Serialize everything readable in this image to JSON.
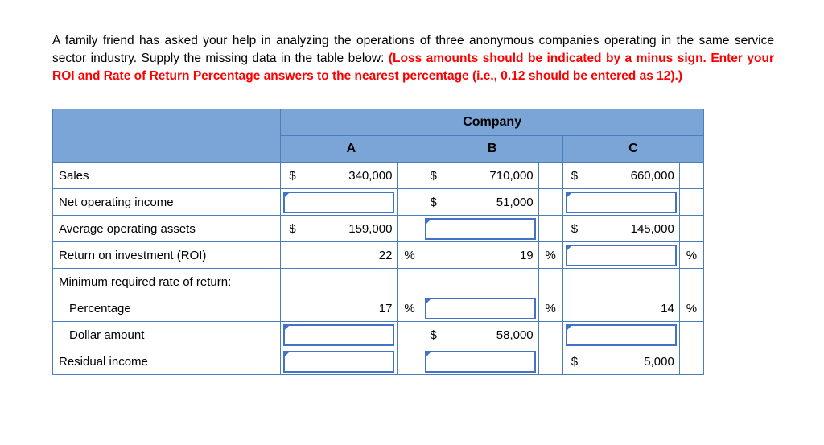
{
  "intro": {
    "text_black": "A family friend has asked your help in analyzing the operations of three anonymous companies operating in the same service sector industry. Supply the missing data in the table below: ",
    "text_red": "(Loss amounts should be indicated by a minus sign. Enter your ROI and Rate of Return Percentage answers to the nearest percentage (i.e., 0.12 should be entered as 12).)"
  },
  "table": {
    "title": "Company",
    "columns": [
      "A",
      "B",
      "C"
    ],
    "rows": [
      {
        "label": "Sales",
        "indent": false,
        "cells": [
          {
            "input": false,
            "dollar": "$",
            "amount": "340,000",
            "percent": ""
          },
          {
            "input": false,
            "dollar": "$",
            "amount": "710,000",
            "percent": ""
          },
          {
            "input": false,
            "dollar": "$",
            "amount": "660,000",
            "percent": ""
          }
        ]
      },
      {
        "label": "Net operating income",
        "indent": false,
        "cells": [
          {
            "input": true,
            "dollar": "",
            "amount": "",
            "percent": ""
          },
          {
            "input": false,
            "dollar": "$",
            "amount": "51,000",
            "percent": ""
          },
          {
            "input": true,
            "dollar": "",
            "amount": "",
            "percent": ""
          }
        ]
      },
      {
        "label": "Average operating assets",
        "indent": false,
        "cells": [
          {
            "input": false,
            "dollar": "$",
            "amount": "159,000",
            "percent": ""
          },
          {
            "input": true,
            "dollar": "",
            "amount": "",
            "percent": ""
          },
          {
            "input": false,
            "dollar": "$",
            "amount": "145,000",
            "percent": ""
          }
        ]
      },
      {
        "label": "Return on investment (ROI)",
        "indent": false,
        "cells": [
          {
            "input": false,
            "dollar": "",
            "amount": "22",
            "percent": "%"
          },
          {
            "input": false,
            "dollar": "",
            "amount": "19",
            "percent": "%"
          },
          {
            "input": true,
            "dollar": "",
            "amount": "",
            "percent": "%"
          }
        ]
      },
      {
        "label": "Minimum required rate of return:",
        "indent": false,
        "cells": [
          {
            "input": false,
            "dollar": "",
            "amount": "",
            "percent": ""
          },
          {
            "input": false,
            "dollar": "",
            "amount": "",
            "percent": ""
          },
          {
            "input": false,
            "dollar": "",
            "amount": "",
            "percent": ""
          }
        ]
      },
      {
        "label": "Percentage",
        "indent": true,
        "cells": [
          {
            "input": false,
            "dollar": "",
            "amount": "17",
            "percent": "%"
          },
          {
            "input": true,
            "dollar": "",
            "amount": "",
            "percent": "%"
          },
          {
            "input": false,
            "dollar": "",
            "amount": "14",
            "percent": "%"
          }
        ]
      },
      {
        "label": "Dollar amount",
        "indent": true,
        "cells": [
          {
            "input": true,
            "dollar": "",
            "amount": "",
            "percent": ""
          },
          {
            "input": false,
            "dollar": "$",
            "amount": "58,000",
            "percent": ""
          },
          {
            "input": true,
            "dollar": "",
            "amount": "",
            "percent": ""
          }
        ]
      },
      {
        "label": "Residual income",
        "indent": false,
        "cells": [
          {
            "input": true,
            "dollar": "",
            "amount": "",
            "percent": ""
          },
          {
            "input": true,
            "dollar": "",
            "amount": "",
            "percent": ""
          },
          {
            "input": false,
            "dollar": "$",
            "amount": "5,000",
            "percent": ""
          }
        ]
      }
    ]
  },
  "colors": {
    "header_bg": "#7BA5D7",
    "grid_border": "#4A7EBB",
    "input_border": "#4472C4",
    "red_text": "#FF0000",
    "triangle": "#4472C4"
  }
}
